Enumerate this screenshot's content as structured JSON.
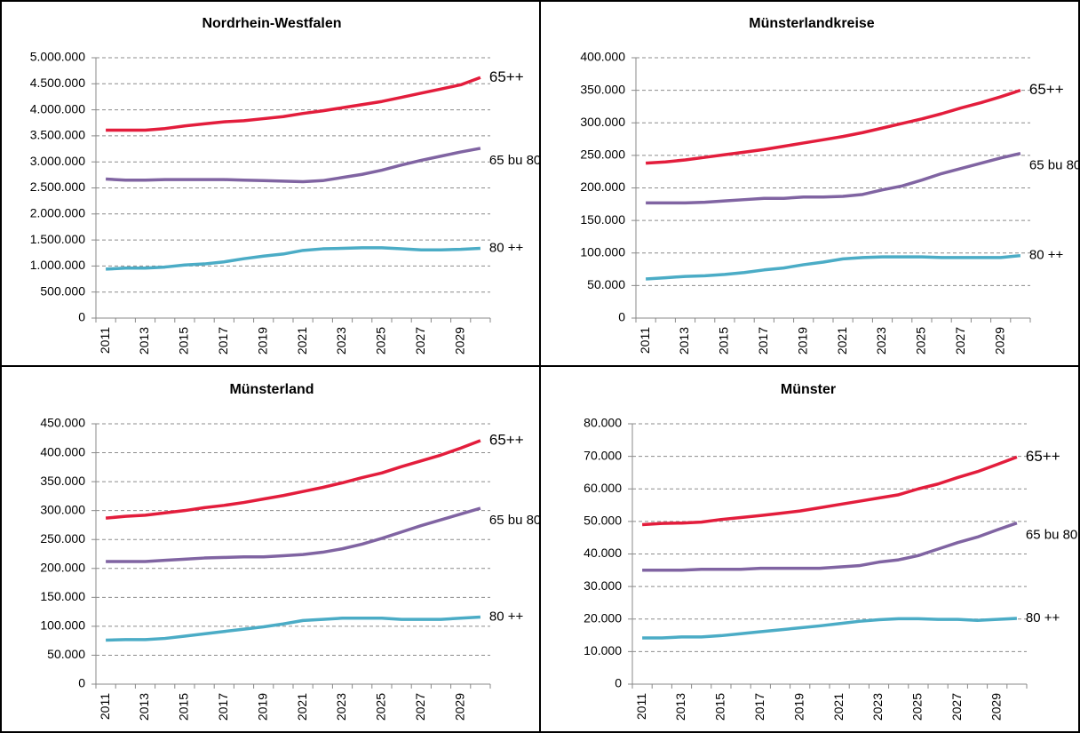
{
  "chart_data": [
    {
      "type": "line",
      "title": "Nordrhein-Westfalen",
      "categories": [
        "2011",
        null,
        "2013",
        null,
        "2015",
        null,
        "2017",
        null,
        "2019",
        null,
        "2021",
        null,
        "2023",
        null,
        "2025",
        null,
        "2027",
        null,
        "2029",
        null
      ],
      "series": [
        {
          "name": "65++",
          "color": "#e31d3c",
          "values": [
            3610000,
            3610000,
            3610000,
            3640000,
            3690000,
            3730000,
            3770000,
            3790000,
            3830000,
            3870000,
            3930000,
            3980000,
            4040000,
            4100000,
            4160000,
            4240000,
            4320000,
            4400000,
            4480000,
            4620000
          ]
        },
        {
          "name": "65 bu 80",
          "color": "#8064a2",
          "values": [
            2670000,
            2650000,
            2650000,
            2660000,
            2660000,
            2660000,
            2660000,
            2650000,
            2640000,
            2630000,
            2620000,
            2640000,
            2700000,
            2760000,
            2840000,
            2940000,
            3030000,
            3110000,
            3190000,
            3260000
          ]
        },
        {
          "name": "80 ++",
          "color": "#4bacc6",
          "values": [
            940000,
            960000,
            960000,
            980000,
            1020000,
            1040000,
            1080000,
            1140000,
            1190000,
            1230000,
            1300000,
            1330000,
            1340000,
            1350000,
            1350000,
            1330000,
            1310000,
            1310000,
            1320000,
            1340000
          ]
        }
      ],
      "ylim": [
        0,
        5000000
      ],
      "yticks": [
        0,
        {
          "value": 500000,
          "label": "500.000"
        },
        {
          "value": 1000000,
          "label": "1.000.000"
        },
        {
          "value": 1500000,
          "label": "1.500.000"
        },
        {
          "value": 2000000,
          "label": "2.000.000"
        },
        {
          "value": 2500000,
          "label": "2.500.000"
        },
        {
          "value": 3000000,
          "label": "3.000.000"
        },
        {
          "value": 3500000,
          "label": "3.500.000"
        },
        {
          "value": 4000000,
          "label": "4.000.000"
        },
        {
          "value": 4500000,
          "label": "4.500.000"
        },
        {
          "value": 5000000,
          "label": "5.000.000"
        }
      ],
      "grid": true
    },
    {
      "type": "line",
      "title": "Münsterlandkreise",
      "categories": [
        "2011",
        null,
        "2013",
        null,
        "2015",
        null,
        "2017",
        null,
        "2019",
        null,
        "2021",
        null,
        "2023",
        null,
        "2025",
        null,
        "2027",
        null,
        "2029",
        null
      ],
      "series": [
        {
          "name": "65++",
          "color": "#e31d3c",
          "values": [
            238000,
            240000,
            243000,
            247000,
            251000,
            255000,
            259000,
            264000,
            269000,
            274000,
            279000,
            285000,
            292000,
            299000,
            306000,
            314000,
            323000,
            331000,
            340000,
            350000
          ]
        },
        {
          "name": "65 bu 80",
          "color": "#8064a2",
          "values": [
            177000,
            177000,
            177000,
            178000,
            180000,
            182000,
            184000,
            184000,
            186000,
            186000,
            187000,
            190000,
            197000,
            203000,
            212000,
            222000,
            230000,
            238000,
            246000,
            253000
          ]
        },
        {
          "name": "80 ++",
          "color": "#4bacc6",
          "values": [
            60000,
            62000,
            64000,
            65000,
            67000,
            70000,
            74000,
            77000,
            82000,
            86000,
            91000,
            93000,
            94000,
            94000,
            94000,
            93000,
            93000,
            93000,
            93000,
            96000
          ]
        }
      ],
      "ylim": [
        0,
        400000
      ],
      "yticks": [
        0,
        {
          "value": 50000,
          "label": "50.000"
        },
        {
          "value": 100000,
          "label": "100.000"
        },
        {
          "value": 150000,
          "label": "150.000"
        },
        {
          "value": 200000,
          "label": "200.000"
        },
        {
          "value": 250000,
          "label": "250.000"
        },
        {
          "value": 300000,
          "label": "300.000"
        },
        {
          "value": 350000,
          "label": "350.000"
        },
        {
          "value": 400000,
          "label": "400.000"
        }
      ],
      "grid": true
    },
    {
      "type": "line",
      "title": "Münsterland",
      "categories": [
        "2011",
        null,
        "2013",
        null,
        "2015",
        null,
        "2017",
        null,
        "2019",
        null,
        "2021",
        null,
        "2023",
        null,
        "2025",
        null,
        "2027",
        null,
        "2029",
        null
      ],
      "series": [
        {
          "name": "65++",
          "color": "#e31d3c",
          "values": [
            287000,
            290000,
            292000,
            296000,
            300000,
            305000,
            309000,
            314000,
            320000,
            326000,
            333000,
            340000,
            348000,
            357000,
            365000,
            376000,
            386000,
            396000,
            408000,
            421000
          ]
        },
        {
          "name": "65 bu 80",
          "color": "#8064a2",
          "values": [
            212000,
            212000,
            212000,
            214000,
            216000,
            218000,
            219000,
            220000,
            220000,
            222000,
            224000,
            228000,
            234000,
            242000,
            252000,
            263000,
            274000,
            284000,
            294000,
            304000
          ]
        },
        {
          "name": "80 ++",
          "color": "#4bacc6",
          "values": [
            76000,
            77000,
            77000,
            79000,
            83000,
            87000,
            91000,
            95000,
            99000,
            104000,
            110000,
            112000,
            114000,
            114000,
            114000,
            112000,
            112000,
            112000,
            114000,
            116000
          ]
        }
      ],
      "ylim": [
        0,
        450000
      ],
      "yticks": [
        0,
        {
          "value": 50000,
          "label": "50.000"
        },
        {
          "value": 100000,
          "label": "100.000"
        },
        {
          "value": 150000,
          "label": "150.000"
        },
        {
          "value": 200000,
          "label": "200.000"
        },
        {
          "value": 250000,
          "label": "250.000"
        },
        {
          "value": 300000,
          "label": "300.000"
        },
        {
          "value": 350000,
          "label": "350.000"
        },
        {
          "value": 400000,
          "label": "400.000"
        },
        {
          "value": 450000,
          "label": "450.000"
        }
      ],
      "grid": true
    },
    {
      "type": "line",
      "title": "Münster",
      "categories": [
        "2011",
        null,
        "2013",
        null,
        "2015",
        null,
        "2017",
        null,
        "2019",
        null,
        "2021",
        null,
        "2023",
        null,
        "2025",
        null,
        "2027",
        null,
        "2029",
        null
      ],
      "series": [
        {
          "name": "65++",
          "color": "#e31d3c",
          "values": [
            49000,
            49400,
            49500,
            49800,
            50600,
            51200,
            51800,
            52500,
            53200,
            54200,
            55200,
            56200,
            57200,
            58200,
            60000,
            61500,
            63500,
            65300,
            67500,
            69800
          ]
        },
        {
          "name": "65 bu 80",
          "color": "#8064a2",
          "values": [
            35000,
            35000,
            35000,
            35300,
            35300,
            35300,
            35600,
            35600,
            35600,
            35600,
            36000,
            36400,
            37500,
            38200,
            39500,
            41500,
            43500,
            45200,
            47400,
            49500
          ]
        },
        {
          "name": "80 ++",
          "color": "#4bacc6",
          "values": [
            14200,
            14200,
            14500,
            14500,
            14900,
            15500,
            16100,
            16700,
            17300,
            17900,
            18600,
            19300,
            19800,
            20100,
            20100,
            19900,
            19900,
            19600,
            19900,
            20200
          ]
        }
      ],
      "ylim": [
        0,
        80000
      ],
      "yticks": [
        0,
        {
          "value": 10000,
          "label": "10.000"
        },
        {
          "value": 20000,
          "label": "20.000"
        },
        {
          "value": 30000,
          "label": "30.000"
        },
        {
          "value": 40000,
          "label": "40.000"
        },
        {
          "value": 50000,
          "label": "50.000"
        },
        {
          "value": 60000,
          "label": "60.000"
        },
        {
          "value": 70000,
          "label": "70.000"
        },
        {
          "value": 80000,
          "label": "80.000"
        }
      ],
      "grid": true
    }
  ]
}
